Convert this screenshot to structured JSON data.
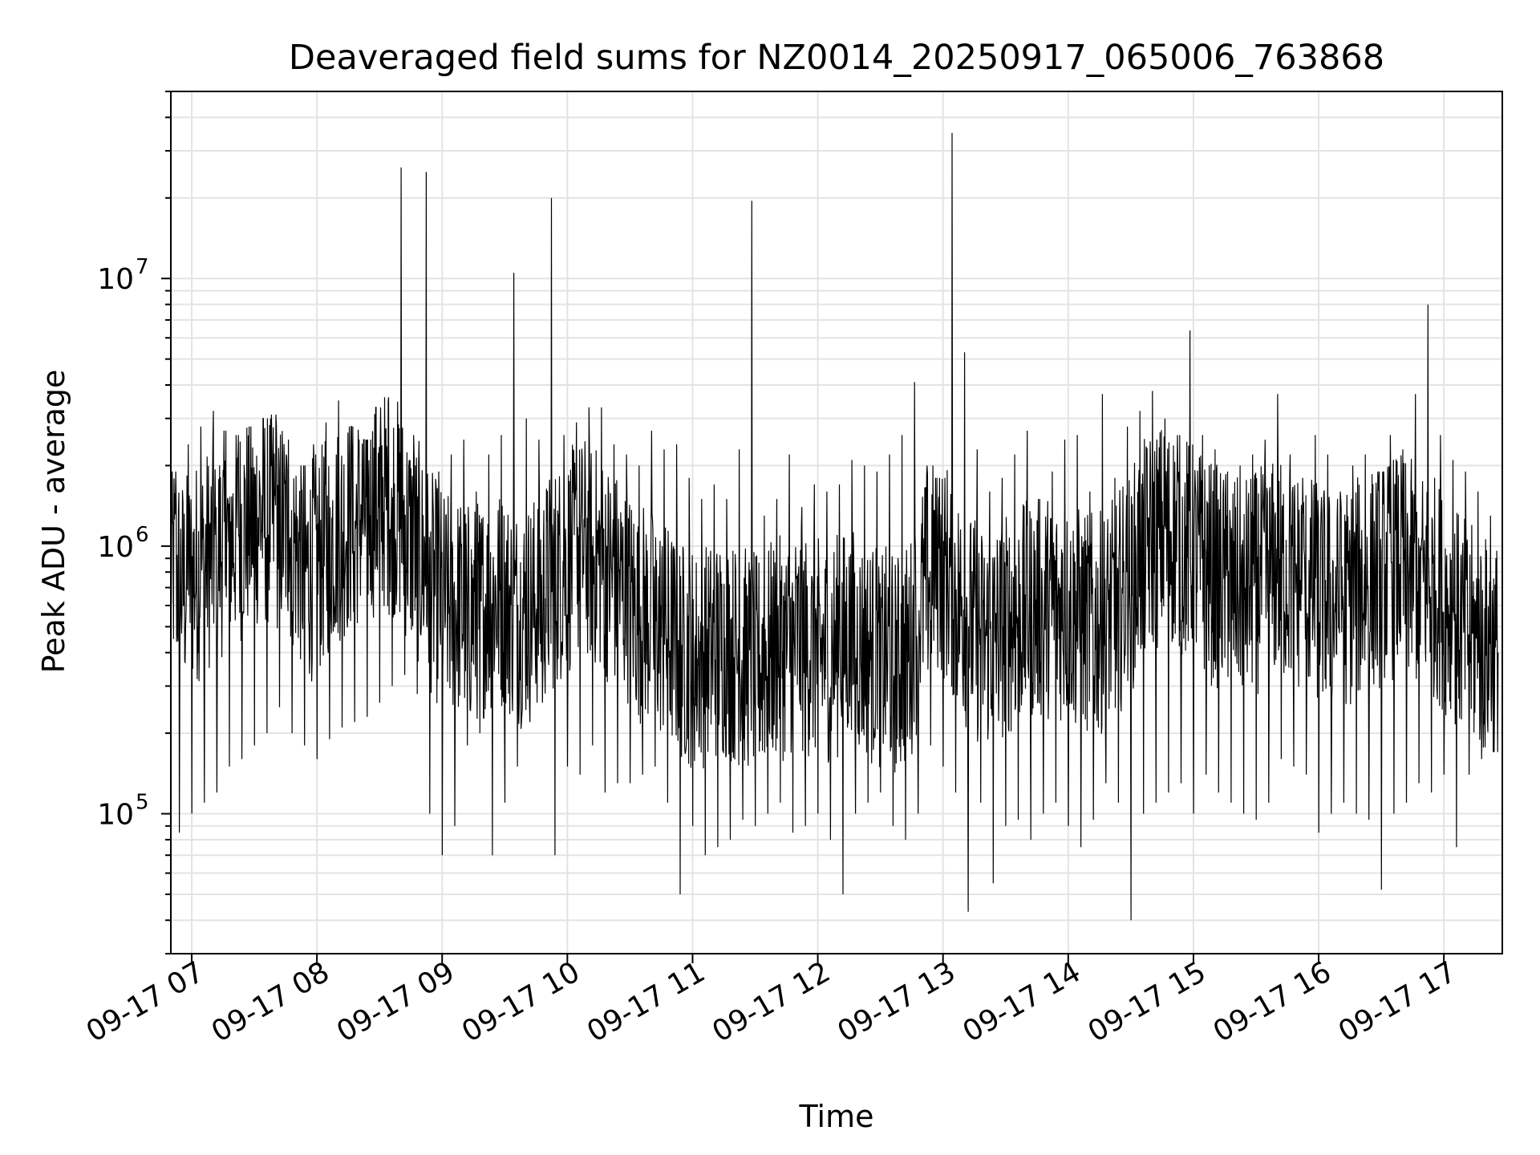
{
  "chart_data": {
    "type": "line",
    "title": "Deaveraged field sums for NZ0014_20250917_065006_763868",
    "xlabel": "Time",
    "ylabel": "Peak ADU - average",
    "y_scale": "log",
    "ylim": [
      30000,
      50000000
    ],
    "xlim": [
      "2025-09-17 06:50",
      "2025-09-17 17:28"
    ],
    "grid": true,
    "line_color": "#000000",
    "grid_color": "#e3e3e3",
    "x_ticks": [
      {
        "value": "2025-09-17 07:00",
        "label": "09-17 07"
      },
      {
        "value": "2025-09-17 08:00",
        "label": "09-17 08"
      },
      {
        "value": "2025-09-17 09:00",
        "label": "09-17 09"
      },
      {
        "value": "2025-09-17 10:00",
        "label": "09-17 10"
      },
      {
        "value": "2025-09-17 11:00",
        "label": "09-17 11"
      },
      {
        "value": "2025-09-17 12:00",
        "label": "09-17 12"
      },
      {
        "value": "2025-09-17 13:00",
        "label": "09-17 13"
      },
      {
        "value": "2025-09-17 14:00",
        "label": "09-17 14"
      },
      {
        "value": "2025-09-17 15:00",
        "label": "09-17 15"
      },
      {
        "value": "2025-09-17 16:00",
        "label": "09-17 16"
      },
      {
        "value": "2025-09-17 17:00",
        "label": "09-17 17"
      }
    ],
    "y_ticks": [
      {
        "value": 100000,
        "base": "10",
        "exp": "5"
      },
      {
        "value": 1000000,
        "base": "10",
        "exp": "6"
      },
      {
        "value": 10000000,
        "base": "10",
        "exp": "7"
      }
    ],
    "x": [
      "2025-09-17 06:50",
      "2025-09-17 06:56",
      "2025-09-17 07:02",
      "2025-09-17 07:08",
      "2025-09-17 07:14",
      "2025-09-17 07:20",
      "2025-09-17 07:26",
      "2025-09-17 07:32",
      "2025-09-17 07:38",
      "2025-09-17 07:44",
      "2025-09-17 07:50",
      "2025-09-17 07:56",
      "2025-09-17 08:02",
      "2025-09-17 08:08",
      "2025-09-17 08:14",
      "2025-09-17 08:20",
      "2025-09-17 08:26",
      "2025-09-17 08:32",
      "2025-09-17 08:38",
      "2025-09-17 08:44",
      "2025-09-17 08:50",
      "2025-09-17 08:56",
      "2025-09-17 09:02",
      "2025-09-17 09:08",
      "2025-09-17 09:14",
      "2025-09-17 09:20",
      "2025-09-17 09:26",
      "2025-09-17 09:32",
      "2025-09-17 09:38",
      "2025-09-17 09:44",
      "2025-09-17 09:50",
      "2025-09-17 09:56",
      "2025-09-17 10:02",
      "2025-09-17 10:08",
      "2025-09-17 10:14",
      "2025-09-17 10:20",
      "2025-09-17 10:26",
      "2025-09-17 10:32",
      "2025-09-17 10:38",
      "2025-09-17 10:44",
      "2025-09-17 10:50",
      "2025-09-17 10:56",
      "2025-09-17 11:02",
      "2025-09-17 11:08",
      "2025-09-17 11:14",
      "2025-09-17 11:20",
      "2025-09-17 11:26",
      "2025-09-17 11:32",
      "2025-09-17 11:38",
      "2025-09-17 11:44",
      "2025-09-17 11:50",
      "2025-09-17 11:56",
      "2025-09-17 12:02",
      "2025-09-17 12:08",
      "2025-09-17 12:14",
      "2025-09-17 12:20",
      "2025-09-17 12:26",
      "2025-09-17 12:32",
      "2025-09-17 12:38",
      "2025-09-17 12:44",
      "2025-09-17 12:50",
      "2025-09-17 12:56",
      "2025-09-17 13:02",
      "2025-09-17 13:08",
      "2025-09-17 13:14",
      "2025-09-17 13:20",
      "2025-09-17 13:26",
      "2025-09-17 13:32",
      "2025-09-17 13:38",
      "2025-09-17 13:44",
      "2025-09-17 13:50",
      "2025-09-17 13:56",
      "2025-09-17 14:02",
      "2025-09-17 14:08",
      "2025-09-17 14:14",
      "2025-09-17 14:20",
      "2025-09-17 14:26",
      "2025-09-17 14:32",
      "2025-09-17 14:38",
      "2025-09-17 14:44",
      "2025-09-17 14:50",
      "2025-09-17 14:56",
      "2025-09-17 15:02",
      "2025-09-17 15:08",
      "2025-09-17 15:14",
      "2025-09-17 15:20",
      "2025-09-17 15:26",
      "2025-09-17 15:32",
      "2025-09-17 15:38",
      "2025-09-17 15:44",
      "2025-09-17 15:50",
      "2025-09-17 15:56",
      "2025-09-17 16:02",
      "2025-09-17 16:08",
      "2025-09-17 16:14",
      "2025-09-17 16:20",
      "2025-09-17 16:26",
      "2025-09-17 16:32",
      "2025-09-17 16:38",
      "2025-09-17 16:44",
      "2025-09-17 16:50",
      "2025-09-17 16:56",
      "2025-09-17 17:02",
      "2025-09-17 17:08",
      "2025-09-17 17:14",
      "2025-09-17 17:20",
      "2025-09-17 17:26"
    ],
    "series": [
      {
        "values": [
          900000,
          700000,
          800000,
          900000,
          1000000,
          1100000,
          1200000,
          1300000,
          1300000,
          1200000,
          1000000,
          800000,
          900000,
          1100000,
          1200000,
          1300000,
          1400000,
          1500000,
          1400000,
          1100000,
          900000,
          700000,
          600000,
          600000,
          550000,
          600000,
          650000,
          600000,
          550000,
          600000,
          700000,
          800000,
          900000,
          1000000,
          900000,
          800000,
          700000,
          600000,
          550000,
          500000,
          450000,
          400000,
          380000,
          400000,
          420000,
          400000,
          380000,
          360000,
          400000,
          420000,
          450000,
          420000,
          400000,
          420000,
          450000,
          430000,
          400000,
          380000,
          360000,
          400000,
          650000,
          900000,
          800000,
          600000,
          500000,
          450000,
          480000,
          520000,
          550000,
          580000,
          600000,
          580000,
          550000,
          520000,
          500000,
          550000,
          650000,
          800000,
          1000000,
          1100000,
          1100000,
          1000000,
          900000,
          800000,
          750000,
          700000,
          700000,
          750000,
          800000,
          800000,
          750000,
          700000,
          650000,
          600000,
          650000,
          700000,
          750000,
          800000,
          850000,
          800000,
          750000,
          700000,
          600000,
          500000,
          450000,
          420000,
          400000
        ],
        "max": [
          1900000,
          2400000,
          2800000,
          3200000,
          2700000,
          2600000,
          2800000,
          3000000,
          3100000,
          2500000,
          2000000,
          2400000,
          2900000,
          3500000,
          2800000,
          2500000,
          3300000,
          3600000,
          26000000,
          2600000,
          25000000,
          1900000,
          2200000,
          2500000,
          1600000,
          2200000,
          2600000,
          10500000,
          3000000,
          2500000,
          20000000,
          2600000,
          2900000,
          3300000,
          3300000,
          2400000,
          2200000,
          2000000,
          2700000,
          2300000,
          2400000,
          1800000,
          1500000,
          1700000,
          1500000,
          2300000,
          19500000,
          1300000,
          1500000,
          2200000,
          1400000,
          1700000,
          1600000,
          1700000,
          2100000,
          2000000,
          1900000,
          2200000,
          2600000,
          4100000,
          2000000,
          1800000,
          35000000,
          5300000,
          2300000,
          1600000,
          1800000,
          2200000,
          2700000,
          1500000,
          1900000,
          2500000,
          2600000,
          1600000,
          3700000,
          1800000,
          2800000,
          3200000,
          3800000,
          3000000,
          2600000,
          6400000,
          2600000,
          2300000,
          1900000,
          2000000,
          2200000,
          2500000,
          3700000,
          2200000,
          1800000,
          2600000,
          2200000,
          1600000,
          2000000,
          2200000,
          1900000,
          2600000,
          2300000,
          3700000,
          8000000,
          2600000,
          2100000,
          1900000,
          1600000,
          1300000,
          1100000
        ],
        "min": [
          85000,
          100000,
          110000,
          120000,
          150000,
          160000,
          180000,
          200000,
          250000,
          200000,
          180000,
          160000,
          190000,
          210000,
          220000,
          230000,
          260000,
          300000,
          330000,
          280000,
          100000,
          70000,
          90000,
          180000,
          200000,
          70000,
          110000,
          150000,
          220000,
          260000,
          70000,
          150000,
          140000,
          180000,
          120000,
          130000,
          130000,
          140000,
          150000,
          110000,
          50000,
          90000,
          70000,
          75000,
          80000,
          95000,
          90000,
          100000,
          110000,
          85000,
          90000,
          100000,
          80000,
          50000,
          100000,
          110000,
          120000,
          90000,
          80000,
          100000,
          180000,
          150000,
          120000,
          43000,
          110000,
          55000,
          90000,
          95000,
          80000,
          100000,
          110000,
          90000,
          75000,
          95000,
          130000,
          110000,
          40000,
          100000,
          110000,
          120000,
          130000,
          100000,
          140000,
          120000,
          110000,
          100000,
          95000,
          110000,
          160000,
          150000,
          140000,
          85000,
          100000,
          110000,
          100000,
          95000,
          52000,
          100000,
          110000,
          130000,
          120000,
          140000,
          75000,
          140000,
          160000,
          170000,
          180000
        ]
      }
    ]
  }
}
